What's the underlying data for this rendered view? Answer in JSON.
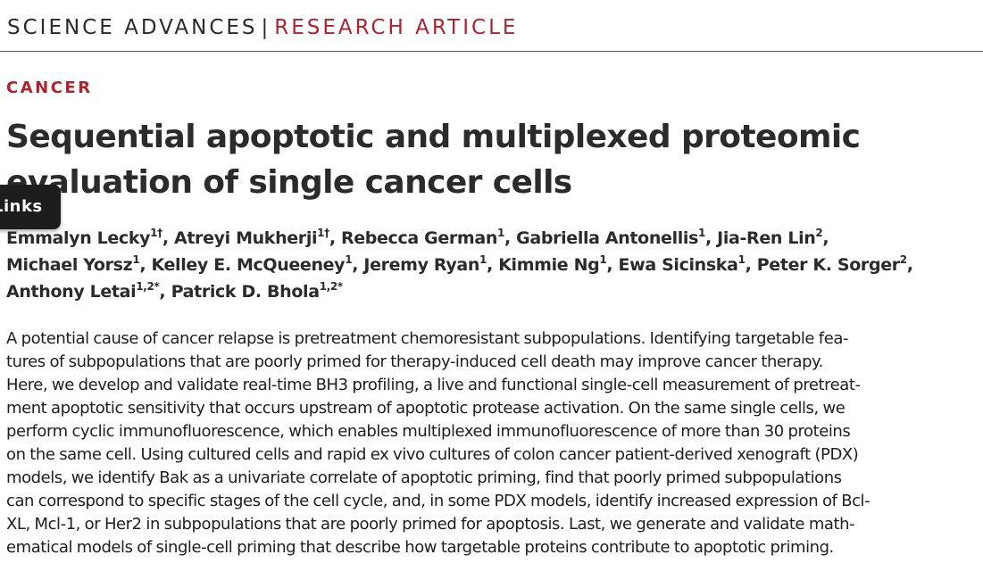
{
  "header": {
    "journal": "SCIENCE ADVANCES",
    "separator": "|",
    "article_type": "RESEARCH ARTICLE"
  },
  "section": "CANCER",
  "title": {
    "line1": "Sequential apoptotic and multiplexed proteomic",
    "line2": "evaluation of single cancer cells"
  },
  "links_tab": {
    "label": "Links"
  },
  "authors": [
    {
      "name": "Emmalyn Lecky",
      "aff": "1†"
    },
    {
      "name": "Atreyi Mukherji",
      "aff": "1†"
    },
    {
      "name": "Rebecca German",
      "aff": "1"
    },
    {
      "name": "Gabriella Antonellis",
      "aff": "1"
    },
    {
      "name": "Jia-Ren Lin",
      "aff": "2"
    },
    {
      "name": "Michael Yorsz",
      "aff": "1"
    },
    {
      "name": "Kelley E. McQueeney",
      "aff": "1"
    },
    {
      "name": "Jeremy Ryan",
      "aff": "1"
    },
    {
      "name": "Kimmie Ng",
      "aff": "1"
    },
    {
      "name": "Ewa Sicinska",
      "aff": "1"
    },
    {
      "name": "Peter K. Sorger",
      "aff": "2"
    },
    {
      "name": "Anthony Letai",
      "aff": "1,2*"
    },
    {
      "name": "Patrick D. Bhola",
      "aff": "1,2*"
    }
  ],
  "abstract_lines": [
    "A potential cause of cancer relapse is pretreatment chemoresistant subpopulations. Identifying targetable fea-",
    "tures of subpopulations that are poorly primed for therapy-induced cell death may improve cancer therapy.",
    "Here, we develop and validate real-time BH3 profiling, a live and functional single-cell measurement of pretreat-",
    "ment apoptotic sensitivity that occurs upstream of apoptotic protease activation. On the same single cells, we",
    "perform cyclic immunofluorescence, which enables multiplexed immunofluorescence of more than 30 proteins",
    "on the same cell. Using cultured cells and rapid ex vivo cultures of colon cancer patient-derived xenograft (PDX)",
    "models, we identify Bak as a univariate correlate of apoptotic priming, find that poorly primed subpopulations",
    "can correspond to specific stages of the cell cycle, and, in some PDX models, identify increased expression of Bcl-",
    "XL, Mcl-1, or Her2 in subpopulations that are poorly primed for apoptosis. Last, we generate and validate math-",
    "ematical models of single-cell priming that describe how targetable proteins contribute to apoptotic priming."
  ]
}
